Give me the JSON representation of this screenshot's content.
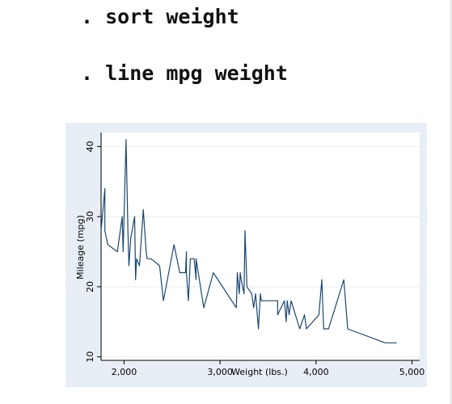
{
  "commands": [
    ". sort weight",
    ". line mpg weight"
  ],
  "colors": {
    "outer_background": "#e8eef5",
    "plot_background": "#ffffff",
    "grid": "#e6edf3",
    "line": "#1a476f",
    "axis": "#000000"
  },
  "chart_data": {
    "type": "line",
    "title": "",
    "xlabel": "Weight (lbs.)",
    "ylabel": "Mileage (mpg)",
    "xlim": [
      1760,
      5080
    ],
    "ylim": [
      9.5,
      42
    ],
    "xticks": [
      2000,
      3000,
      4000,
      5000
    ],
    "xtick_labels": [
      "2,000",
      "3,000",
      "4,000",
      "5,000"
    ],
    "yticks": [
      10,
      20,
      30,
      40
    ],
    "ytick_labels": [
      "10",
      "20",
      "30",
      "40"
    ],
    "grid": true,
    "series": [
      {
        "x": [
          1760,
          1800,
          1800,
          1830,
          1930,
          1980,
          1990,
          2020,
          2040,
          2050,
          2070,
          2110,
          2120,
          2130,
          2160,
          2200,
          2230,
          2240,
          2280,
          2370,
          2410,
          2520,
          2580,
          2640,
          2650,
          2650,
          2670,
          2690,
          2730,
          2750,
          2750,
          2830,
          2930,
          3170,
          3180,
          3200,
          3210,
          3220,
          3250,
          3260,
          3280,
          3330,
          3350,
          3370,
          3400,
          3420,
          3430,
          3470,
          3600,
          3600,
          3670,
          3690,
          3700,
          3720,
          3740,
          3830,
          3880,
          3900,
          4030,
          4060,
          4080,
          4130,
          4290,
          4330,
          4720,
          4840
        ],
        "y": [
          28,
          34,
          28,
          26,
          25,
          30,
          25,
          41,
          28,
          23,
          27,
          30,
          21,
          24,
          23,
          31,
          25,
          24,
          24,
          23,
          18,
          26,
          22,
          22,
          25,
          22,
          18,
          24,
          24,
          21,
          24,
          17,
          22,
          17,
          22,
          19,
          22,
          21,
          19,
          28,
          20,
          19,
          17,
          19,
          14,
          19,
          18,
          18,
          18,
          16,
          18,
          15,
          18,
          16,
          18,
          14,
          16,
          14,
          16,
          21,
          14,
          14,
          21,
          14,
          12,
          12
        ]
      }
    ]
  }
}
